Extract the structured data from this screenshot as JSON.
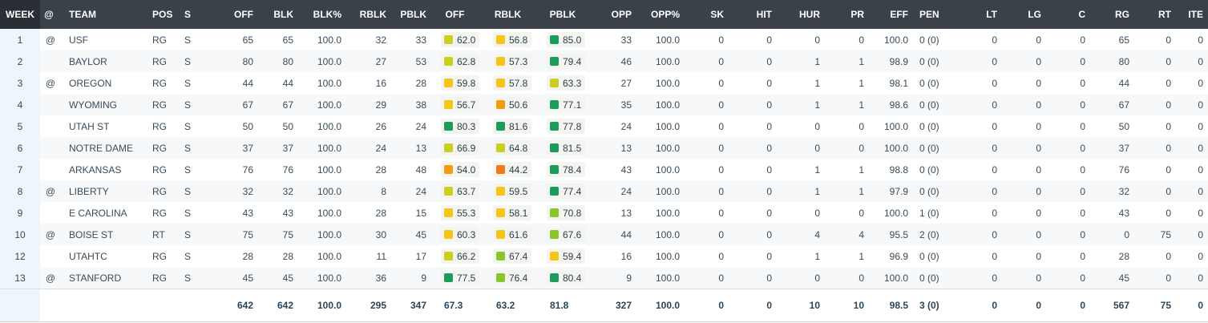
{
  "headers": [
    "WEEK",
    "@",
    "TEAM",
    "POS",
    "S",
    "OFF",
    "BLK",
    "BLK%",
    "RBLK",
    "PBLK",
    "OFF",
    "RBLK",
    "PBLK",
    "OPP",
    "OPP%",
    "SK",
    "HIT",
    "HUR",
    "PR",
    "EFF",
    "PEN",
    "LT",
    "LG",
    "C",
    "RG",
    "RT",
    "ITE"
  ],
  "grade_colors": {
    "elite": "#1a9c5a",
    "good": "#8cc42c",
    "above": "#c9cf1f",
    "average": "#f5c518",
    "below": "#f59b12",
    "poor": "#f07a1a"
  },
  "rows": [
    {
      "week": "1",
      "at": "@",
      "team": "USF",
      "pos": "RG",
      "s": "S",
      "off": "65",
      "blk": "65",
      "blkpct": "100.0",
      "rblk": "32",
      "pblk": "33",
      "g_off": "62.0",
      "g_rblk": "56.8",
      "g_pblk": "85.0",
      "opp": "33",
      "opppct": "100.0",
      "sk": "0",
      "hit": "0",
      "hur": "0",
      "pr": "0",
      "eff": "100.0",
      "pen": "0 (0)",
      "lt": "0",
      "lg": "0",
      "c": "0",
      "rg": "65",
      "rt": "0",
      "ite": "0"
    },
    {
      "week": "2",
      "at": "",
      "team": "BAYLOR",
      "pos": "RG",
      "s": "S",
      "off": "80",
      "blk": "80",
      "blkpct": "100.0",
      "rblk": "27",
      "pblk": "53",
      "g_off": "62.8",
      "g_rblk": "57.3",
      "g_pblk": "79.4",
      "opp": "46",
      "opppct": "100.0",
      "sk": "0",
      "hit": "0",
      "hur": "1",
      "pr": "1",
      "eff": "98.9",
      "pen": "0 (0)",
      "lt": "0",
      "lg": "0",
      "c": "0",
      "rg": "80",
      "rt": "0",
      "ite": "0"
    },
    {
      "week": "3",
      "at": "@",
      "team": "OREGON",
      "pos": "RG",
      "s": "S",
      "off": "44",
      "blk": "44",
      "blkpct": "100.0",
      "rblk": "16",
      "pblk": "28",
      "g_off": "59.8",
      "g_rblk": "57.8",
      "g_pblk": "63.3",
      "opp": "27",
      "opppct": "100.0",
      "sk": "0",
      "hit": "0",
      "hur": "1",
      "pr": "1",
      "eff": "98.1",
      "pen": "0 (0)",
      "lt": "0",
      "lg": "0",
      "c": "0",
      "rg": "44",
      "rt": "0",
      "ite": "0"
    },
    {
      "week": "4",
      "at": "",
      "team": "WYOMING",
      "pos": "RG",
      "s": "S",
      "off": "67",
      "blk": "67",
      "blkpct": "100.0",
      "rblk": "29",
      "pblk": "38",
      "g_off": "56.7",
      "g_rblk": "50.6",
      "g_pblk": "77.1",
      "opp": "35",
      "opppct": "100.0",
      "sk": "0",
      "hit": "0",
      "hur": "1",
      "pr": "1",
      "eff": "98.6",
      "pen": "0 (0)",
      "lt": "0",
      "lg": "0",
      "c": "0",
      "rg": "67",
      "rt": "0",
      "ite": "0"
    },
    {
      "week": "5",
      "at": "",
      "team": "UTAH ST",
      "pos": "RG",
      "s": "S",
      "off": "50",
      "blk": "50",
      "blkpct": "100.0",
      "rblk": "26",
      "pblk": "24",
      "g_off": "80.3",
      "g_rblk": "81.6",
      "g_pblk": "77.8",
      "opp": "24",
      "opppct": "100.0",
      "sk": "0",
      "hit": "0",
      "hur": "0",
      "pr": "0",
      "eff": "100.0",
      "pen": "0 (0)",
      "lt": "0",
      "lg": "0",
      "c": "0",
      "rg": "50",
      "rt": "0",
      "ite": "0"
    },
    {
      "week": "6",
      "at": "",
      "team": "NOTRE DAME",
      "pos": "RG",
      "s": "S",
      "off": "37",
      "blk": "37",
      "blkpct": "100.0",
      "rblk": "24",
      "pblk": "13",
      "g_off": "66.9",
      "g_rblk": "64.8",
      "g_pblk": "81.5",
      "opp": "13",
      "opppct": "100.0",
      "sk": "0",
      "hit": "0",
      "hur": "0",
      "pr": "0",
      "eff": "100.0",
      "pen": "0 (0)",
      "lt": "0",
      "lg": "0",
      "c": "0",
      "rg": "37",
      "rt": "0",
      "ite": "0"
    },
    {
      "week": "7",
      "at": "",
      "team": "ARKANSAS",
      "pos": "RG",
      "s": "S",
      "off": "76",
      "blk": "76",
      "blkpct": "100.0",
      "rblk": "28",
      "pblk": "48",
      "g_off": "54.0",
      "g_rblk": "44.2",
      "g_pblk": "78.4",
      "opp": "43",
      "opppct": "100.0",
      "sk": "0",
      "hit": "0",
      "hur": "1",
      "pr": "1",
      "eff": "98.8",
      "pen": "0 (0)",
      "lt": "0",
      "lg": "0",
      "c": "0",
      "rg": "76",
      "rt": "0",
      "ite": "0"
    },
    {
      "week": "8",
      "at": "@",
      "team": "LIBERTY",
      "pos": "RG",
      "s": "S",
      "off": "32",
      "blk": "32",
      "blkpct": "100.0",
      "rblk": "8",
      "pblk": "24",
      "g_off": "63.7",
      "g_rblk": "59.5",
      "g_pblk": "77.4",
      "opp": "24",
      "opppct": "100.0",
      "sk": "0",
      "hit": "0",
      "hur": "1",
      "pr": "1",
      "eff": "97.9",
      "pen": "0 (0)",
      "lt": "0",
      "lg": "0",
      "c": "0",
      "rg": "32",
      "rt": "0",
      "ite": "0"
    },
    {
      "week": "9",
      "at": "",
      "team": "E CAROLINA",
      "pos": "RG",
      "s": "S",
      "off": "43",
      "blk": "43",
      "blkpct": "100.0",
      "rblk": "28",
      "pblk": "15",
      "g_off": "55.3",
      "g_rblk": "58.1",
      "g_pblk": "70.8",
      "opp": "13",
      "opppct": "100.0",
      "sk": "0",
      "hit": "0",
      "hur": "0",
      "pr": "0",
      "eff": "100.0",
      "pen": "1 (0)",
      "lt": "0",
      "lg": "0",
      "c": "0",
      "rg": "43",
      "rt": "0",
      "ite": "0"
    },
    {
      "week": "10",
      "at": "@",
      "team": "BOISE ST",
      "pos": "RT",
      "s": "S",
      "off": "75",
      "blk": "75",
      "blkpct": "100.0",
      "rblk": "30",
      "pblk": "45",
      "g_off": "60.3",
      "g_rblk": "61.6",
      "g_pblk": "67.6",
      "opp": "44",
      "opppct": "100.0",
      "sk": "0",
      "hit": "0",
      "hur": "4",
      "pr": "4",
      "eff": "95.5",
      "pen": "2 (0)",
      "lt": "0",
      "lg": "0",
      "c": "0",
      "rg": "0",
      "rt": "75",
      "ite": "0"
    },
    {
      "week": "12",
      "at": "",
      "team": "UTAHTC",
      "pos": "RG",
      "s": "S",
      "off": "28",
      "blk": "28",
      "blkpct": "100.0",
      "rblk": "11",
      "pblk": "17",
      "g_off": "66.2",
      "g_rblk": "67.4",
      "g_pblk": "59.4",
      "opp": "16",
      "opppct": "100.0",
      "sk": "0",
      "hit": "0",
      "hur": "1",
      "pr": "1",
      "eff": "96.9",
      "pen": "0 (0)",
      "lt": "0",
      "lg": "0",
      "c": "0",
      "rg": "28",
      "rt": "0",
      "ite": "0"
    },
    {
      "week": "13",
      "at": "@",
      "team": "STANFORD",
      "pos": "RG",
      "s": "S",
      "off": "45",
      "blk": "45",
      "blkpct": "100.0",
      "rblk": "36",
      "pblk": "9",
      "g_off": "77.5",
      "g_rblk": "76.4",
      "g_pblk": "80.4",
      "opp": "9",
      "opppct": "100.0",
      "sk": "0",
      "hit": "0",
      "hur": "0",
      "pr": "0",
      "eff": "100.0",
      "pen": "0 (0)",
      "lt": "0",
      "lg": "0",
      "c": "0",
      "rg": "45",
      "rt": "0",
      "ite": "0"
    }
  ],
  "totals": {
    "off": "642",
    "blk": "642",
    "blkpct": "100.0",
    "rblk": "295",
    "pblk": "347",
    "g_off": "67.3",
    "g_rblk": "63.2",
    "g_pblk": "81.8",
    "opp": "327",
    "opppct": "100.0",
    "sk": "0",
    "hit": "0",
    "hur": "10",
    "pr": "10",
    "eff": "98.5",
    "pen": "3 (0)",
    "lt": "0",
    "lg": "0",
    "c": "0",
    "rg": "567",
    "rt": "75",
    "ite": "0"
  }
}
